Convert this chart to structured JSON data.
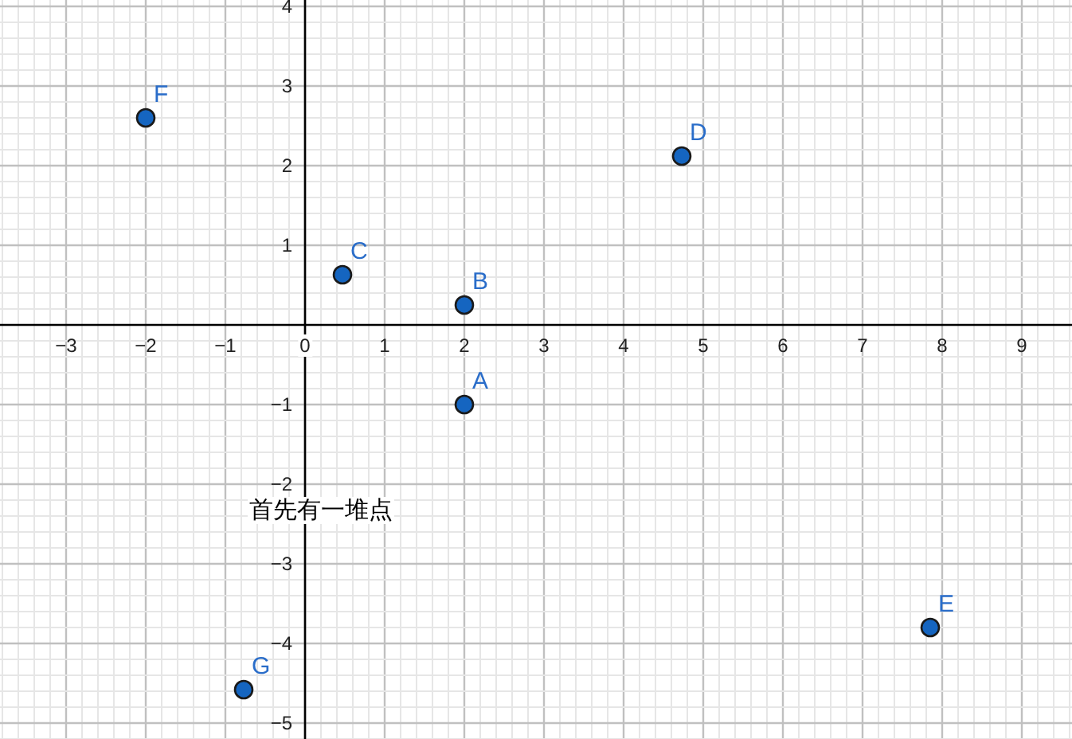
{
  "chart_data": {
    "type": "scatter",
    "xlim": [
      -3.83,
      9.63
    ],
    "ylim": [
      -5.2,
      4.08
    ],
    "xticks": [
      {
        "value": -3,
        "label": "−3"
      },
      {
        "value": -2,
        "label": "−2"
      },
      {
        "value": -1,
        "label": "−1"
      },
      0,
      1,
      2,
      3,
      4,
      5,
      6,
      7,
      8,
      9
    ],
    "yticks": [
      {
        "value": -5,
        "label": "−5"
      },
      {
        "value": -4,
        "label": "−4"
      },
      {
        "value": -3,
        "label": "−3"
      },
      {
        "value": -2,
        "label": "−2"
      },
      {
        "value": -1,
        "label": "−1"
      },
      1,
      2,
      3,
      4
    ],
    "grid": true,
    "marker": "circle",
    "series": [
      {
        "color": "#1565c0",
        "x": [
          2,
          2,
          0.47,
          4.73,
          7.85,
          -2,
          -0.77
        ],
        "values": [
          -1,
          0.25,
          0.63,
          2.12,
          -3.8,
          2.6,
          -4.58
        ]
      }
    ],
    "annotations": [
      {
        "text": "A",
        "x": 2,
        "y": -1
      },
      {
        "text": "B",
        "x": 2,
        "y": 0.25
      },
      {
        "text": "C",
        "x": 0.47,
        "y": 0.63
      },
      {
        "text": "D",
        "x": 4.73,
        "y": 2.12
      },
      {
        "text": "E",
        "x": 7.85,
        "y": -3.8
      },
      {
        "text": "F",
        "x": -2,
        "y": 2.6
      },
      {
        "text": "G",
        "x": -0.77,
        "y": -4.58
      },
      "首先有一堆点"
    ]
  }
}
